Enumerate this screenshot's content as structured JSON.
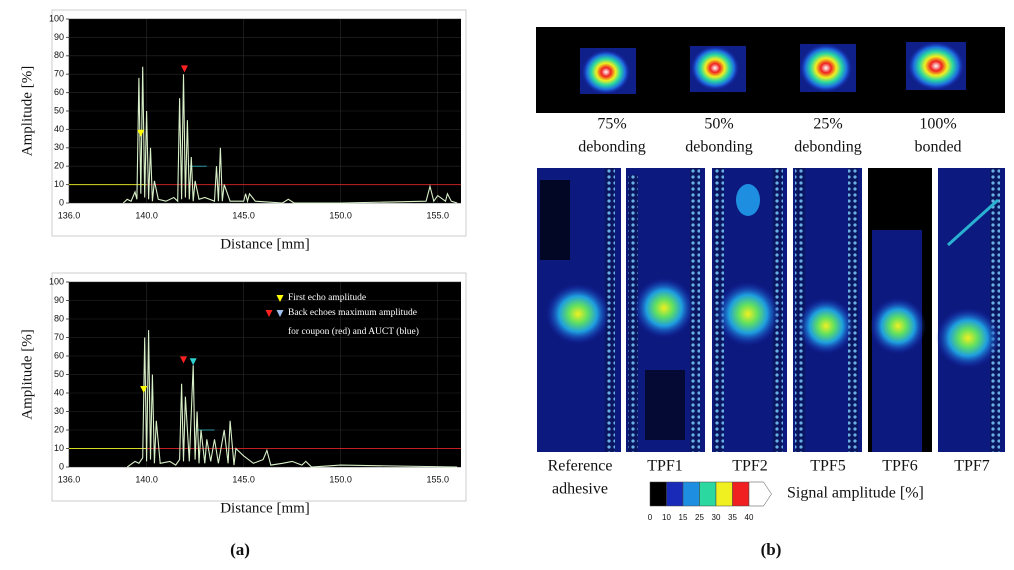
{
  "chart_data": [
    {
      "type": "line",
      "xlabel": "Distance [mm]",
      "ylabel": "Amplitude [%]",
      "xlim": [
        136,
        156.2
      ],
      "ylim": [
        0,
        100
      ],
      "xticks": [
        {
          "value": 136,
          "label": "136.0"
        },
        {
          "value": 140,
          "label": "140.0"
        },
        {
          "value": 145,
          "label": "145.0"
        },
        {
          "value": 150,
          "label": "150.0"
        },
        {
          "value": 155,
          "label": "155.0"
        }
      ],
      "yticks": [
        0,
        10,
        20,
        30,
        40,
        50,
        60,
        70,
        80,
        90,
        100
      ],
      "series": [
        {
          "color": "#d8f0c8",
          "x": [
            138.8,
            139.0,
            139.2,
            139.4,
            139.5,
            139.6,
            139.7,
            139.8,
            139.9,
            140.0,
            140.1,
            140.2,
            140.3,
            140.4,
            140.6,
            141.0,
            141.4,
            141.6,
            141.7,
            141.8,
            141.9,
            142.0,
            142.1,
            142.2,
            142.3,
            142.4,
            142.5,
            142.7,
            143.0,
            143.5,
            143.6,
            143.7,
            143.8,
            143.9,
            144.0,
            144.3,
            145.0,
            145.1,
            145.2,
            145.3,
            145.6,
            147.0,
            147.3,
            147.6,
            150.0,
            154.4,
            154.6,
            154.8,
            155.0,
            155.4,
            155.5,
            155.7,
            156.0
          ],
          "values": [
            0,
            2,
            1,
            6,
            2,
            68,
            5,
            74,
            3,
            50,
            2,
            30,
            1,
            12,
            2,
            1,
            3,
            1,
            57,
            2,
            70,
            3,
            45,
            2,
            25,
            1,
            12,
            2,
            3,
            1,
            20,
            1,
            30,
            1,
            10,
            1,
            1,
            5,
            1,
            5,
            1,
            0,
            2,
            0,
            0,
            1,
            9,
            1,
            4,
            1,
            5,
            1,
            0
          ]
        }
      ],
      "threshold_lines": [
        {
          "color": "#d8d820",
          "x": [
            136,
            140
          ],
          "values": [
            10,
            10
          ]
        },
        {
          "color": "#c02020",
          "x": [
            140,
            156.2
          ],
          "values": [
            10,
            10
          ]
        }
      ],
      "gates": [
        {
          "color": "#2a9aa0",
          "x": [
            142.2,
            143.1
          ],
          "values": [
            20,
            20
          ]
        }
      ],
      "markers": [
        {
          "x": 139.7,
          "y": 36,
          "color": "#ffff00"
        },
        {
          "x": 141.95,
          "y": 71,
          "color": "#ff2020"
        }
      ],
      "annotations": []
    },
    {
      "type": "line",
      "xlabel": "Distance [mm]",
      "ylabel": "Amplitude [%]",
      "xlim": [
        136,
        156.2
      ],
      "ylim": [
        0,
        100
      ],
      "xticks": [
        {
          "value": 136,
          "label": "136.0"
        },
        {
          "value": 140,
          "label": "140.0"
        },
        {
          "value": 145,
          "label": "145.0"
        },
        {
          "value": 150,
          "label": "150.0"
        },
        {
          "value": 155,
          "label": "155.0"
        }
      ],
      "yticks": [
        0,
        10,
        20,
        30,
        40,
        50,
        60,
        70,
        80,
        90,
        100
      ],
      "series": [
        {
          "color": "#d8f0c8",
          "x": [
            139.0,
            139.4,
            139.6,
            139.8,
            139.9,
            140.0,
            140.1,
            140.2,
            140.3,
            140.4,
            140.5,
            140.7,
            141.2,
            141.5,
            141.7,
            141.8,
            141.9,
            142.0,
            142.2,
            142.4,
            142.5,
            142.6,
            142.7,
            142.8,
            143.0,
            143.1,
            143.3,
            143.5,
            143.7,
            144.0,
            144.2,
            144.3,
            144.5,
            144.6,
            145.0,
            145.5,
            146.0,
            146.2,
            146.4,
            147.0,
            147.5,
            148.0,
            148.2,
            148.5,
            150.0,
            156.0
          ],
          "values": [
            0,
            3,
            2,
            5,
            70,
            3,
            74,
            4,
            50,
            2,
            25,
            2,
            3,
            1,
            4,
            45,
            3,
            38,
            3,
            55,
            4,
            30,
            2,
            20,
            2,
            15,
            3,
            15,
            2,
            20,
            2,
            25,
            1,
            10,
            6,
            2,
            4,
            9,
            1,
            2,
            3,
            1,
            3,
            0,
            1,
            0
          ]
        }
      ],
      "threshold_lines": [
        {
          "color": "#d8d820",
          "x": [
            136,
            140
          ],
          "values": [
            10,
            10
          ]
        },
        {
          "color": "#c02020",
          "x": [
            140,
            156.2
          ],
          "values": [
            10,
            10
          ]
        }
      ],
      "gates": [
        {
          "color": "#2a9aa0",
          "x": [
            142.6,
            143.5
          ],
          "values": [
            20,
            20
          ]
        }
      ],
      "markers": [
        {
          "x": 139.85,
          "y": 40,
          "color": "#ffff00"
        },
        {
          "x": 141.9,
          "y": 56,
          "color": "#ff2020"
        },
        {
          "x": 142.4,
          "y": 55,
          "color": "#30d0d0"
        }
      ],
      "annotations": [
        {
          "text": "First echo amplitude",
          "markers": [
            "#ffff00"
          ]
        },
        {
          "text": "Back echoes maximum amplitude",
          "markers": [
            "#ff2020",
            "#a0c0f0"
          ]
        },
        {
          "text": "for coupon (red) and AUCT (blue)",
          "markers": []
        }
      ]
    }
  ],
  "panel_b": {
    "conditions": [
      [
        "75%",
        "debonding"
      ],
      [
        "50%",
        "debonding"
      ],
      [
        "25%",
        "debonding"
      ],
      [
        "100%",
        "bonded"
      ]
    ],
    "specimens": [
      [
        "Reference",
        "adhesive"
      ],
      [
        "TPF1"
      ],
      [
        "TPF2"
      ],
      [
        "TPF5"
      ],
      [
        "TPF6"
      ],
      [
        "TPF7"
      ]
    ],
    "colorbar": {
      "label": "Signal amplitude [%]",
      "ticks": [
        0,
        10,
        15,
        25,
        30,
        35,
        40
      ],
      "colors": [
        "#000000",
        "#1a2ab8",
        "#1e8ee0",
        "#2ad8a0",
        "#f0f020",
        "#f02020",
        "#ffffff"
      ]
    }
  },
  "panel_labels": [
    "(a)",
    "(b)"
  ]
}
